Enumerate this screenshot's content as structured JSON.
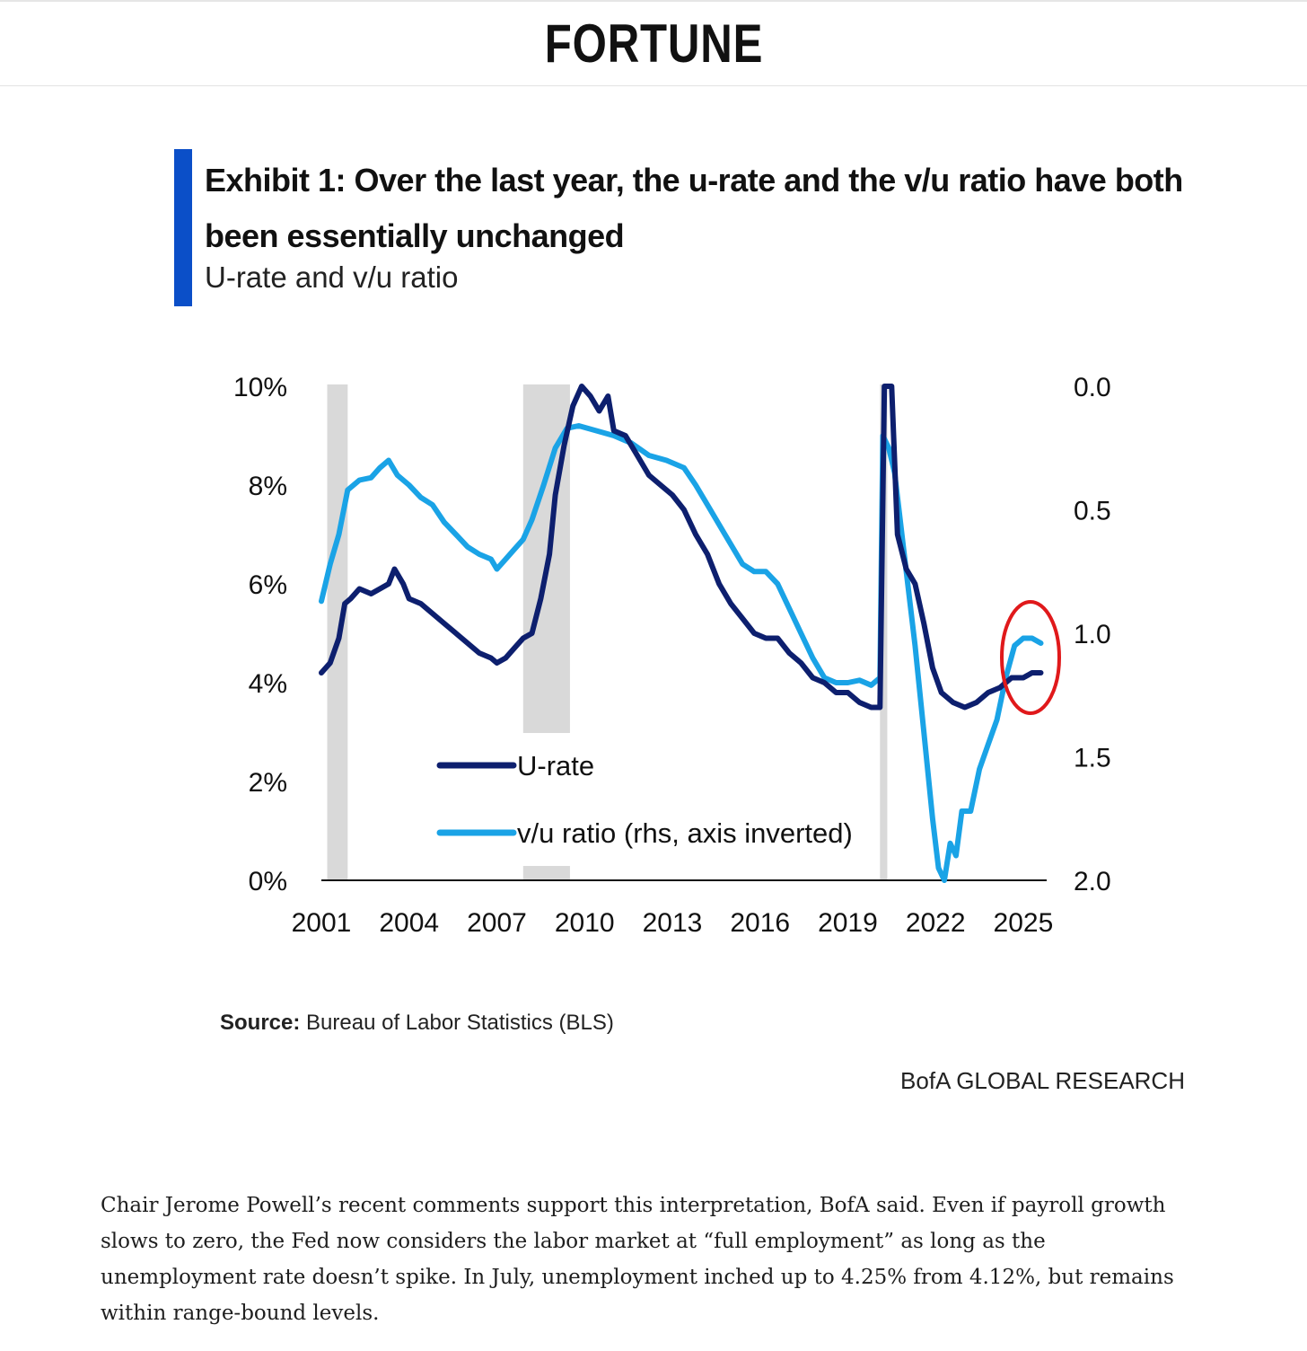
{
  "masthead": {
    "logo": "FORTUNE"
  },
  "exhibit": {
    "title": "Exhibit 1: Over the last year, the u-rate and the v/u ratio have both been essentially unchanged",
    "subtitle": "U-rate and v/u ratio",
    "source_label": "Source:",
    "source_text": "Bureau of Labor Statistics (BLS)",
    "brand": "BofA GLOBAL RESEARCH"
  },
  "article": {
    "paragraph": "Chair Jerome Powell’s recent comments support this interpretation, BofA said. Even if payroll growth slows to zero, the Fed now considers the labor market at “full employment” as long as the unemployment rate doesn’t spike. In July, unemployment inched up to 4.25% from 4.12%, but remains within range-bound levels."
  },
  "colors": {
    "urate": "#0d1f6e",
    "vu": "#1aa3e6",
    "recession": "#d9d9d9",
    "highlight": "#e0191b",
    "title_bar": "#0b4fc8"
  },
  "chart_data": {
    "type": "line",
    "x_ticks": [
      "2001",
      "2004",
      "2007",
      "2010",
      "2013",
      "2016",
      "2019",
      "2022",
      "2025"
    ],
    "x_range": [
      2001,
      2025.8
    ],
    "y_left": {
      "ticks": [
        "0%",
        "2%",
        "4%",
        "6%",
        "8%",
        "10%"
      ],
      "range": [
        0,
        10
      ]
    },
    "y_right": {
      "ticks": [
        "0.0",
        "0.5",
        "1.0",
        "1.5",
        "2.0"
      ],
      "range": [
        0,
        2
      ],
      "inverted": true
    },
    "recessions": [
      [
        2001.2,
        2001.9
      ],
      [
        2007.9,
        2009.5
      ],
      [
        2020.1,
        2020.35
      ]
    ],
    "series": [
      {
        "name": "U-rate",
        "axis": "left",
        "points": [
          [
            2001.0,
            4.2
          ],
          [
            2001.3,
            4.4
          ],
          [
            2001.6,
            4.9
          ],
          [
            2001.8,
            5.6
          ],
          [
            2002.0,
            5.7
          ],
          [
            2002.3,
            5.9
          ],
          [
            2002.7,
            5.8
          ],
          [
            2003.0,
            5.9
          ],
          [
            2003.3,
            6.0
          ],
          [
            2003.5,
            6.3
          ],
          [
            2003.8,
            6.0
          ],
          [
            2004.0,
            5.7
          ],
          [
            2004.4,
            5.6
          ],
          [
            2004.8,
            5.4
          ],
          [
            2005.2,
            5.2
          ],
          [
            2005.6,
            5.0
          ],
          [
            2006.0,
            4.8
          ],
          [
            2006.4,
            4.6
          ],
          [
            2006.8,
            4.5
          ],
          [
            2007.0,
            4.4
          ],
          [
            2007.3,
            4.5
          ],
          [
            2007.6,
            4.7
          ],
          [
            2007.9,
            4.9
          ],
          [
            2008.2,
            5.0
          ],
          [
            2008.5,
            5.7
          ],
          [
            2008.8,
            6.6
          ],
          [
            2009.0,
            7.8
          ],
          [
            2009.3,
            8.8
          ],
          [
            2009.6,
            9.6
          ],
          [
            2009.9,
            10.0
          ],
          [
            2010.2,
            9.8
          ],
          [
            2010.5,
            9.5
          ],
          [
            2010.8,
            9.8
          ],
          [
            2011.0,
            9.1
          ],
          [
            2011.4,
            9.0
          ],
          [
            2011.8,
            8.6
          ],
          [
            2012.2,
            8.2
          ],
          [
            2012.6,
            8.0
          ],
          [
            2013.0,
            7.8
          ],
          [
            2013.4,
            7.5
          ],
          [
            2013.8,
            7.0
          ],
          [
            2014.2,
            6.6
          ],
          [
            2014.6,
            6.0
          ],
          [
            2015.0,
            5.6
          ],
          [
            2015.4,
            5.3
          ],
          [
            2015.8,
            5.0
          ],
          [
            2016.2,
            4.9
          ],
          [
            2016.6,
            4.9
          ],
          [
            2017.0,
            4.6
          ],
          [
            2017.4,
            4.4
          ],
          [
            2017.8,
            4.1
          ],
          [
            2018.2,
            4.0
          ],
          [
            2018.6,
            3.8
          ],
          [
            2019.0,
            3.8
          ],
          [
            2019.4,
            3.6
          ],
          [
            2019.8,
            3.5
          ],
          [
            2020.1,
            3.5
          ],
          [
            2020.25,
            10.0
          ],
          [
            2020.5,
            10.0
          ],
          [
            2020.7,
            7.0
          ],
          [
            2021.0,
            6.3
          ],
          [
            2021.3,
            6.0
          ],
          [
            2021.6,
            5.2
          ],
          [
            2021.9,
            4.3
          ],
          [
            2022.2,
            3.8
          ],
          [
            2022.6,
            3.6
          ],
          [
            2023.0,
            3.5
          ],
          [
            2023.4,
            3.6
          ],
          [
            2023.8,
            3.8
          ],
          [
            2024.2,
            3.9
          ],
          [
            2024.6,
            4.1
          ],
          [
            2025.0,
            4.1
          ],
          [
            2025.3,
            4.2
          ],
          [
            2025.6,
            4.2
          ]
        ]
      },
      {
        "name": "v/u ratio (rhs, axis inverted)",
        "axis": "right",
        "points": [
          [
            2001.0,
            0.87
          ],
          [
            2001.3,
            0.72
          ],
          [
            2001.6,
            0.6
          ],
          [
            2001.9,
            0.42
          ],
          [
            2002.3,
            0.38
          ],
          [
            2002.7,
            0.37
          ],
          [
            2003.0,
            0.33
          ],
          [
            2003.3,
            0.3
          ],
          [
            2003.6,
            0.36
          ],
          [
            2004.0,
            0.4
          ],
          [
            2004.4,
            0.45
          ],
          [
            2004.8,
            0.48
          ],
          [
            2005.2,
            0.55
          ],
          [
            2005.6,
            0.6
          ],
          [
            2006.0,
            0.65
          ],
          [
            2006.4,
            0.68
          ],
          [
            2006.8,
            0.7
          ],
          [
            2007.0,
            0.74
          ],
          [
            2007.3,
            0.7
          ],
          [
            2007.6,
            0.66
          ],
          [
            2007.9,
            0.62
          ],
          [
            2008.2,
            0.54
          ],
          [
            2008.6,
            0.4
          ],
          [
            2009.0,
            0.25
          ],
          [
            2009.4,
            0.17
          ],
          [
            2009.8,
            0.16
          ],
          [
            2010.4,
            0.18
          ],
          [
            2011.0,
            0.2
          ],
          [
            2011.6,
            0.23
          ],
          [
            2012.2,
            0.28
          ],
          [
            2012.8,
            0.3
          ],
          [
            2013.4,
            0.33
          ],
          [
            2013.8,
            0.4
          ],
          [
            2014.2,
            0.48
          ],
          [
            2014.8,
            0.6
          ],
          [
            2015.4,
            0.72
          ],
          [
            2015.8,
            0.75
          ],
          [
            2016.2,
            0.75
          ],
          [
            2016.6,
            0.8
          ],
          [
            2017.0,
            0.9
          ],
          [
            2017.4,
            1.0
          ],
          [
            2017.8,
            1.1
          ],
          [
            2018.2,
            1.18
          ],
          [
            2018.6,
            1.2
          ],
          [
            2019.0,
            1.2
          ],
          [
            2019.4,
            1.19
          ],
          [
            2019.8,
            1.21
          ],
          [
            2020.1,
            1.18
          ],
          [
            2020.2,
            0.2
          ],
          [
            2020.4,
            0.25
          ],
          [
            2020.6,
            0.35
          ],
          [
            2020.8,
            0.55
          ],
          [
            2021.0,
            0.75
          ],
          [
            2021.3,
            1.05
          ],
          [
            2021.6,
            1.4
          ],
          [
            2021.9,
            1.75
          ],
          [
            2022.1,
            1.95
          ],
          [
            2022.3,
            2.0
          ],
          [
            2022.5,
            1.85
          ],
          [
            2022.7,
            1.9
          ],
          [
            2022.9,
            1.72
          ],
          [
            2023.2,
            1.72
          ],
          [
            2023.5,
            1.55
          ],
          [
            2023.8,
            1.45
          ],
          [
            2024.1,
            1.35
          ],
          [
            2024.4,
            1.18
          ],
          [
            2024.7,
            1.05
          ],
          [
            2025.0,
            1.02
          ],
          [
            2025.3,
            1.02
          ],
          [
            2025.6,
            1.04
          ]
        ]
      }
    ],
    "legend_placement": "inside, bottom-center",
    "annotation": "red circle around 2024–2025 values"
  }
}
